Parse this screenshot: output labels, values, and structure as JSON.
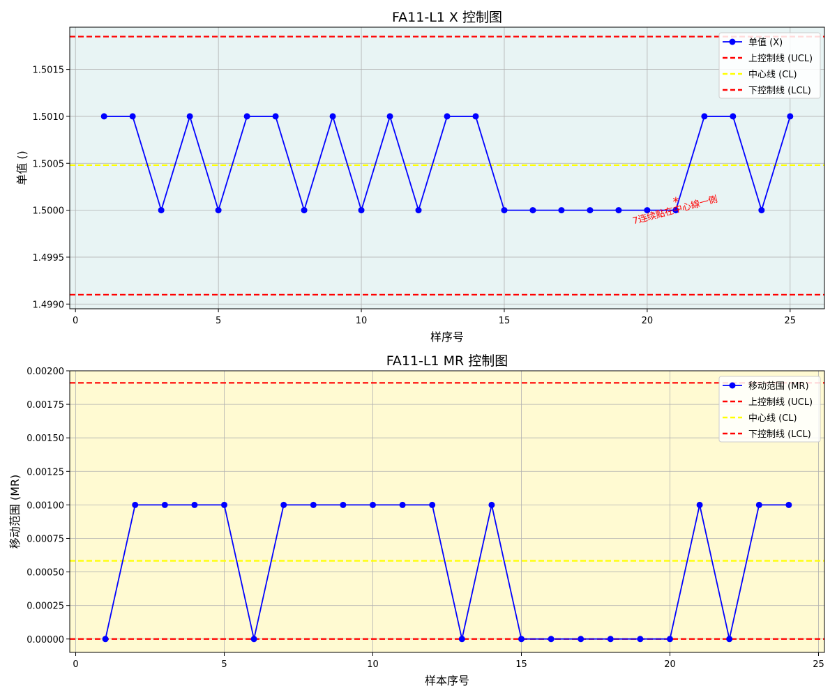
{
  "chart_data": [
    {
      "type": "line",
      "title": "FA11-L1 X 控制图",
      "xlabel": "样序号",
      "ylabel": "单值 ()",
      "xlim": [
        -0.2,
        26.2
      ],
      "ylim": [
        1.49895,
        1.50195
      ],
      "xticks": [
        0,
        5,
        10,
        15,
        20,
        25
      ],
      "xtick_labels": [
        "0",
        "5",
        "10",
        "15",
        "20",
        "25"
      ],
      "yticks": [
        1.499,
        1.4995,
        1.5,
        1.5005,
        1.501,
        1.5015
      ],
      "ytick_labels": [
        "1.4990",
        "1.4995",
        "1.5000",
        "1.5005",
        "1.5010",
        "1.5015"
      ],
      "grid": true,
      "legend_position": "top-right",
      "background": "#e8f4f4",
      "series": [
        {
          "name": "单值 (X)",
          "color": "#0000ff",
          "marker": "circle",
          "x": [
            1,
            2,
            3,
            4,
            5,
            6,
            7,
            8,
            9,
            10,
            11,
            12,
            13,
            14,
            15,
            16,
            17,
            18,
            19,
            20,
            21,
            22,
            23,
            24,
            25
          ],
          "y": [
            1.501,
            1.501,
            1.5,
            1.501,
            1.5,
            1.501,
            1.501,
            1.5,
            1.501,
            1.5,
            1.501,
            1.5,
            1.501,
            1.501,
            1.5,
            1.5,
            1.5,
            1.5,
            1.5,
            1.5,
            1.5,
            1.501,
            1.501,
            1.5,
            1.501
          ]
        }
      ],
      "reference_lines": [
        {
          "name": "上控制线 (UCL)",
          "value": 1.50185,
          "color": "#ff0000",
          "style": "dashed"
        },
        {
          "name": "中心线 (CL)",
          "value": 1.50048,
          "color": "#ffff00",
          "style": "dashed"
        },
        {
          "name": "下控制线 (LCL)",
          "value": 1.4991,
          "color": "#ff0000",
          "style": "dashed"
        }
      ],
      "annotations": [
        {
          "marker_text": "*",
          "x": 21,
          "y": 1.50015,
          "text": "7连续點在中心線一側",
          "color": "#ff0000",
          "rotation_deg": -15
        }
      ]
    },
    {
      "type": "line",
      "title": "FA11-L1 MR 控制图",
      "xlabel": "样本序号",
      "ylabel": "移动范围 (MR)",
      "xlim": [
        -0.2,
        25.2
      ],
      "ylim": [
        -0.0001,
        0.002
      ],
      "xticks": [
        0,
        5,
        10,
        15,
        20,
        25
      ],
      "xtick_labels": [
        "0",
        "5",
        "10",
        "15",
        "20",
        "25"
      ],
      "yticks": [
        0,
        0.00025,
        0.0005,
        0.00075,
        0.001,
        0.00125,
        0.0015,
        0.00175,
        0.002
      ],
      "ytick_labels": [
        "0.00000",
        "0.00025",
        "0.00050",
        "0.00075",
        "0.00100",
        "0.00125",
        "0.00150",
        "0.00175",
        "0.00200"
      ],
      "grid": true,
      "legend_position": "top-right",
      "background": "#fffad2",
      "series": [
        {
          "name": "移动范围 (MR)",
          "color": "#0000ff",
          "marker": "circle",
          "x": [
            1,
            2,
            3,
            4,
            5,
            6,
            7,
            8,
            9,
            10,
            11,
            12,
            13,
            14,
            15,
            16,
            17,
            18,
            19,
            20,
            21,
            22,
            23,
            24
          ],
          "y": [
            0,
            0.001,
            0.001,
            0.001,
            0.001,
            0,
            0.001,
            0.001,
            0.001,
            0.001,
            0.001,
            0.001,
            0,
            0.001,
            0,
            0,
            0,
            0,
            0,
            0,
            0.001,
            0,
            0.001,
            0.001
          ]
        }
      ],
      "reference_lines": [
        {
          "name": "上控制线 (UCL)",
          "value": 0.00191,
          "color": "#ff0000",
          "style": "dashed"
        },
        {
          "name": "中心线 (CL)",
          "value": 0.000583,
          "color": "#ffff00",
          "style": "dashed"
        },
        {
          "name": "下控制线 (LCL)",
          "value": 0,
          "color": "#ff0000",
          "style": "dashed"
        }
      ],
      "annotations": []
    }
  ]
}
